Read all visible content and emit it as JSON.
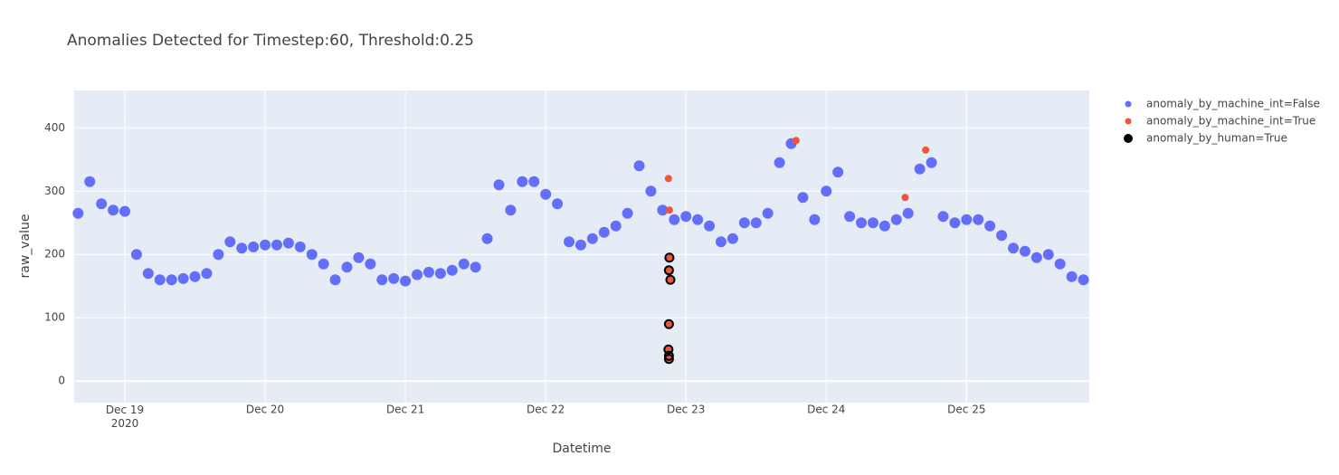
{
  "chart_data": {
    "type": "scatter",
    "title": "Anomalies Detected for Timestep:60, Threshold:0.25",
    "xlabel": "Datetime",
    "ylabel": "raw_value",
    "xlim": [
      "2020-12-18 15:20",
      "2020-12-25 21:00"
    ],
    "xticks": [
      {
        "value": "2020-12-19",
        "label": "Dec 19\n2020"
      },
      {
        "value": "2020-12-20",
        "label": "Dec 20"
      },
      {
        "value": "2020-12-21",
        "label": "Dec 21"
      },
      {
        "value": "2020-12-22",
        "label": "Dec 22"
      },
      {
        "value": "2020-12-23",
        "label": "Dec 23"
      },
      {
        "value": "2020-12-24",
        "label": "Dec 24"
      },
      {
        "value": "2020-12-25",
        "label": "Dec 25"
      }
    ],
    "ylim": [
      -34,
      459
    ],
    "yticks": [
      0,
      100,
      200,
      300,
      400
    ],
    "grid": true,
    "legend_position": "right",
    "series": [
      {
        "name": "anomaly_by_machine_int=False",
        "color": "#636efa",
        "marker": "dot",
        "x": [
          "2020-12-18 16:00",
          "2020-12-18 18:00",
          "2020-12-18 20:00",
          "2020-12-18 22:00",
          "2020-12-19 00:00",
          "2020-12-19 02:00",
          "2020-12-19 04:00",
          "2020-12-19 06:00",
          "2020-12-19 08:00",
          "2020-12-19 10:00",
          "2020-12-19 12:00",
          "2020-12-19 14:00",
          "2020-12-19 16:00",
          "2020-12-19 18:00",
          "2020-12-19 20:00",
          "2020-12-19 22:00",
          "2020-12-20 00:00",
          "2020-12-20 02:00",
          "2020-12-20 04:00",
          "2020-12-20 06:00",
          "2020-12-20 08:00",
          "2020-12-20 10:00",
          "2020-12-20 12:00",
          "2020-12-20 14:00",
          "2020-12-20 16:00",
          "2020-12-20 18:00",
          "2020-12-20 20:00",
          "2020-12-20 22:00",
          "2020-12-21 00:00",
          "2020-12-21 02:00",
          "2020-12-21 04:00",
          "2020-12-21 06:00",
          "2020-12-21 08:00",
          "2020-12-21 10:00",
          "2020-12-21 12:00",
          "2020-12-21 14:00",
          "2020-12-21 16:00",
          "2020-12-21 18:00",
          "2020-12-21 20:00",
          "2020-12-21 22:00",
          "2020-12-22 00:00",
          "2020-12-22 02:00",
          "2020-12-22 04:00",
          "2020-12-22 06:00",
          "2020-12-22 08:00",
          "2020-12-22 10:00",
          "2020-12-22 12:00",
          "2020-12-22 14:00",
          "2020-12-22 16:00",
          "2020-12-22 18:00",
          "2020-12-22 20:00",
          "2020-12-22 22:00",
          "2020-12-23 00:00",
          "2020-12-23 02:00",
          "2020-12-23 04:00",
          "2020-12-23 06:00",
          "2020-12-23 08:00",
          "2020-12-23 10:00",
          "2020-12-23 12:00",
          "2020-12-23 14:00",
          "2020-12-23 16:00",
          "2020-12-23 18:00",
          "2020-12-23 20:00",
          "2020-12-23 22:00",
          "2020-12-24 00:00",
          "2020-12-24 02:00",
          "2020-12-24 04:00",
          "2020-12-24 06:00",
          "2020-12-24 08:00",
          "2020-12-24 10:00",
          "2020-12-24 12:00",
          "2020-12-24 14:00",
          "2020-12-24 16:00",
          "2020-12-24 18:00",
          "2020-12-24 20:00",
          "2020-12-24 22:00",
          "2020-12-25 00:00",
          "2020-12-25 02:00",
          "2020-12-25 04:00",
          "2020-12-25 06:00",
          "2020-12-25 08:00",
          "2020-12-25 10:00",
          "2020-12-25 12:00",
          "2020-12-25 14:00",
          "2020-12-25 16:00",
          "2020-12-25 18:00",
          "2020-12-25 20:00"
        ],
        "values": [
          265,
          315,
          280,
          270,
          268,
          200,
          170,
          160,
          160,
          162,
          165,
          170,
          200,
          220,
          210,
          212,
          215,
          215,
          218,
          212,
          200,
          185,
          160,
          180,
          195,
          185,
          160,
          162,
          158,
          168,
          172,
          170,
          175,
          185,
          180,
          225,
          310,
          270,
          315,
          315,
          295,
          280,
          220,
          215,
          225,
          235,
          245,
          265,
          340,
          300,
          270,
          255,
          260,
          255,
          245,
          220,
          225,
          250,
          250,
          265,
          345,
          375,
          290,
          255,
          300,
          330,
          260,
          250,
          250,
          245,
          255,
          265,
          335,
          345,
          260,
          250,
          255,
          255,
          245,
          230,
          210,
          205,
          195,
          200,
          185,
          165,
          160
        ]
      },
      {
        "name": "anomaly_by_machine_int=True",
        "color": "#ef553b",
        "marker": "dot",
        "x": [
          "2020-12-22 21:00",
          "2020-12-22 21:10",
          "2020-12-22 21:10",
          "2020-12-22 21:05",
          "2020-12-22 21:20",
          "2020-12-22 21:05",
          "2020-12-22 21:00",
          "2020-12-22 21:05",
          "2020-12-22 21:05",
          "2020-12-23 18:50",
          "2020-12-24 13:30",
          "2020-12-24 17:00"
        ],
        "values": [
          320,
          270,
          195,
          175,
          160,
          90,
          50,
          40,
          35,
          380,
          290,
          365
        ]
      },
      {
        "name": "anomaly_by_human=True",
        "color": "#000000",
        "marker": "ring",
        "x": [
          "2020-12-22 21:10",
          "2020-12-22 21:05",
          "2020-12-22 21:20",
          "2020-12-22 21:05",
          "2020-12-22 21:00",
          "2020-12-22 21:05",
          "2020-12-22 21:05"
        ],
        "values": [
          195,
          175,
          160,
          90,
          50,
          40,
          35
        ]
      }
    ]
  }
}
